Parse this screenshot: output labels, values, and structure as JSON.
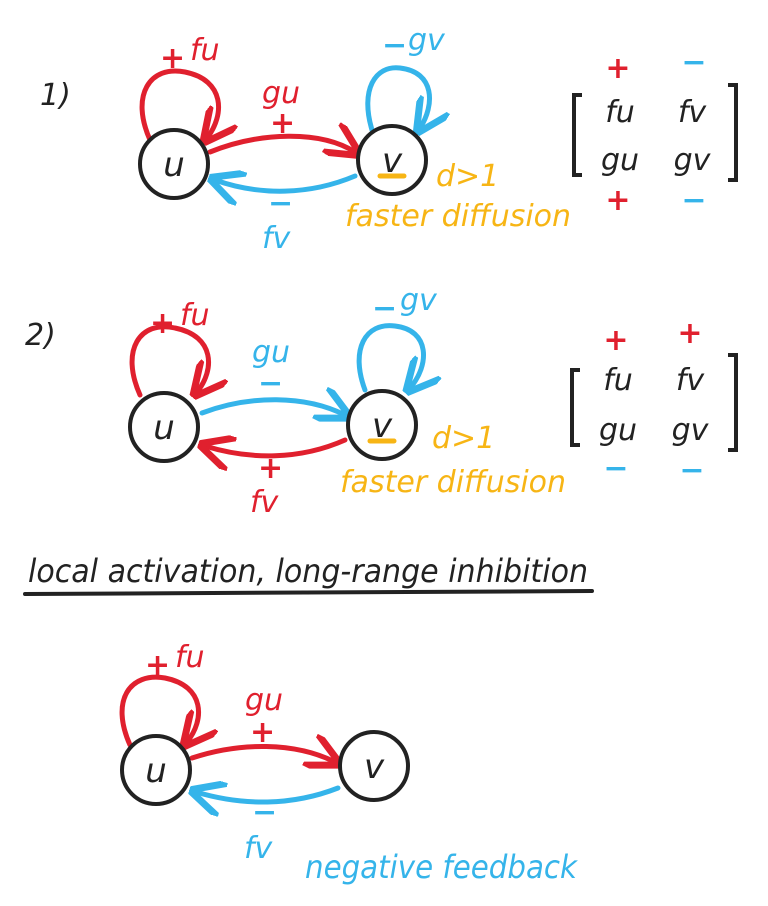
{
  "colors": {
    "positive": "#e0202e",
    "negative": "#35b4ea",
    "diffusion": "#f7b515",
    "ink": "#222222"
  },
  "diagram1": {
    "number": "1)",
    "node_u": "u",
    "node_v": "v",
    "self_u": {
      "sign": "+",
      "label": "fu"
    },
    "self_v": {
      "sign": "−",
      "label": "gv"
    },
    "u_to_v": {
      "label": "gu",
      "sign": "+"
    },
    "v_to_u": {
      "sign": "−",
      "label": "fv"
    },
    "d_label": "d>1",
    "diffusion_note": "faster diffusion",
    "matrix": {
      "top_signs": [
        "+",
        "−"
      ],
      "row1": [
        "fu",
        "fv"
      ],
      "row2": [
        "gu",
        "gv"
      ],
      "bottom_signs": [
        "+",
        "−"
      ]
    }
  },
  "diagram2": {
    "number": "2)",
    "node_u": "u",
    "node_v": "v",
    "self_u": {
      "sign": "+",
      "label": "fu"
    },
    "self_v": {
      "sign": "−",
      "label": "gv"
    },
    "u_to_v": {
      "label": "gu",
      "sign": "−"
    },
    "v_to_u": {
      "sign": "+",
      "label": "fv"
    },
    "d_label": "d>1",
    "diffusion_note": "faster diffusion",
    "matrix": {
      "top_signs": [
        "+",
        "+"
      ],
      "row1": [
        "fu",
        "fv"
      ],
      "row2": [
        "gu",
        "gv"
      ],
      "bottom_signs": [
        "−",
        "−"
      ]
    }
  },
  "heading": "local activation, long-range inhibition",
  "diagram3": {
    "node_u": "u",
    "node_v": "v",
    "self_u": {
      "sign": "+",
      "label": "fu"
    },
    "u_to_v": {
      "label": "gu",
      "sign": "+"
    },
    "v_to_u": {
      "sign": "−",
      "label": "fv"
    },
    "note": "negative feedback"
  }
}
